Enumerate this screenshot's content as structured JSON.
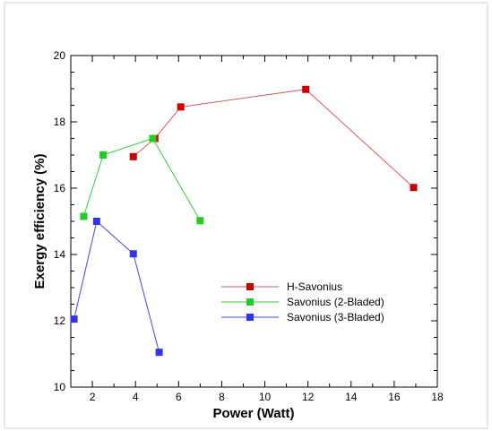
{
  "chart_data": {
    "type": "line",
    "xlabel": "Power (Watt)",
    "ylabel": "Exergy efficiency (%)",
    "xlim": [
      1,
      18
    ],
    "ylim": [
      10,
      20
    ],
    "xticks": [
      "2",
      "4",
      "6",
      "8",
      "10",
      "12",
      "14",
      "16",
      "18"
    ],
    "yticks": [
      "10",
      "12",
      "14",
      "16",
      "18",
      "20"
    ],
    "grid": false,
    "legend_position": "center-right",
    "series": [
      {
        "name": "H-Savonius",
        "color": "#cc0000",
        "line_color": "#d06060",
        "points": [
          [
            3.9,
            16.95
          ],
          [
            4.9,
            17.5
          ],
          [
            6.1,
            18.45
          ],
          [
            11.9,
            18.98
          ],
          [
            16.9,
            16.02
          ]
        ]
      },
      {
        "name": "Savonius (2-Bladed)",
        "color": "#22cc22",
        "line_color": "#33cc33",
        "points": [
          [
            1.6,
            15.15
          ],
          [
            2.5,
            17.0
          ],
          [
            4.8,
            17.5
          ],
          [
            7.0,
            15.02
          ]
        ]
      },
      {
        "name": "Savonius (3-Bladed)",
        "color": "#3333ee",
        "line_color": "#4444ee",
        "points": [
          [
            1.15,
            12.05
          ],
          [
            2.2,
            15.0
          ],
          [
            3.9,
            14.02
          ],
          [
            5.1,
            11.05
          ]
        ]
      }
    ]
  }
}
